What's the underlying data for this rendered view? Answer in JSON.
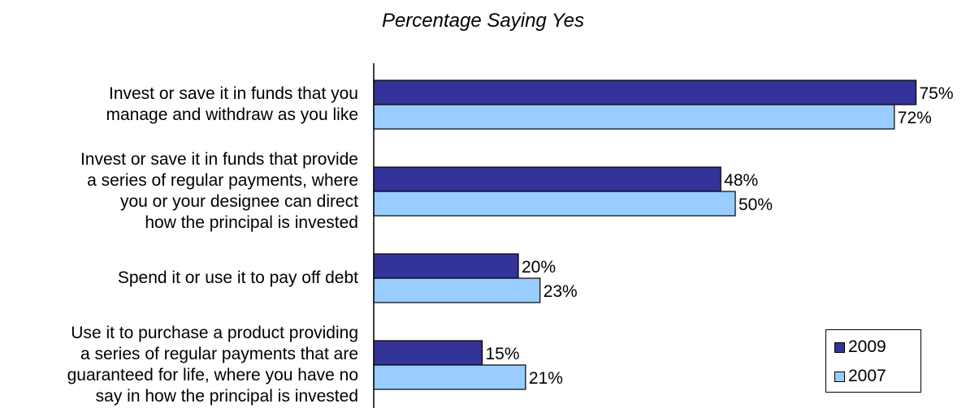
{
  "chart_data": {
    "type": "bar",
    "orientation": "horizontal",
    "title": "Percentage Saying Yes",
    "categories": [
      [
        "Invest or save it in funds that you",
        "manage and withdraw as you like"
      ],
      [
        "Invest or save it in funds that provide",
        "a series of regular payments, where",
        "you or your designee can direct",
        "how the principal is invested"
      ],
      [
        "Spend it or use it to pay off debt"
      ],
      [
        "Use it to purchase a product providing",
        "a series of regular payments that are",
        "guaranteed for life, where you have no",
        "say in how the principal is invested"
      ]
    ],
    "series": [
      {
        "name": "2009",
        "color": "#333399",
        "values": [
          75,
          48,
          20,
          15
        ],
        "labels": [
          "75%",
          "48%",
          "20%",
          "15%"
        ]
      },
      {
        "name": "2007",
        "color": "#99CCFF",
        "values": [
          72,
          50,
          23,
          21
        ],
        "labels": [
          "72%",
          "50%",
          "23%",
          "21%"
        ]
      }
    ],
    "xlim": [
      0,
      100
    ],
    "grid": false,
    "legend_position": "bottom-right"
  }
}
